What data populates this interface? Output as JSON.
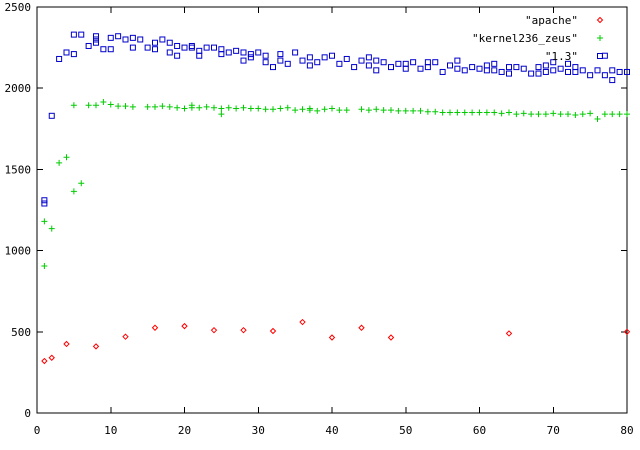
{
  "chart_data": {
    "type": "scatter",
    "title": "",
    "xlabel": "",
    "ylabel": "",
    "xlim": [
      0,
      80
    ],
    "ylim": [
      0,
      2500
    ],
    "xticks": [
      0,
      10,
      20,
      30,
      40,
      50,
      60,
      70,
      80
    ],
    "yticks": [
      0,
      500,
      1000,
      1500,
      2000,
      2500
    ],
    "xtick_labels": [
      "0",
      "10",
      "20",
      "30",
      "40",
      "50",
      "60",
      "70",
      "80"
    ],
    "ytick_labels": [
      "0",
      "500",
      "1000",
      "1500",
      "2000",
      "2500"
    ],
    "grid": false,
    "legend_position": "top-right",
    "series": [
      {
        "name": "\"apache\"",
        "marker": "diamond",
        "color": "#ff0000",
        "points": [
          [
            1,
            320
          ],
          [
            2,
            340
          ],
          [
            4,
            425
          ],
          [
            8,
            410
          ],
          [
            12,
            470
          ],
          [
            16,
            525
          ],
          [
            20,
            535
          ],
          [
            24,
            510
          ],
          [
            28,
            510
          ],
          [
            32,
            505
          ],
          [
            36,
            560
          ],
          [
            40,
            465
          ],
          [
            44,
            525
          ],
          [
            48,
            465
          ],
          [
            64,
            490
          ],
          [
            80,
            500
          ]
        ]
      },
      {
        "name": "\"kernel236_zeus\"",
        "marker": "plus",
        "color": "#00cc00",
        "points": [
          [
            1,
            905
          ],
          [
            1,
            1180
          ],
          [
            2,
            1135
          ],
          [
            3,
            1540
          ],
          [
            4,
            1575
          ],
          [
            5,
            1365
          ],
          [
            5,
            1895
          ],
          [
            6,
            1415
          ],
          [
            7,
            1895
          ],
          [
            8,
            1895
          ],
          [
            9,
            1915
          ],
          [
            10,
            1900
          ],
          [
            11,
            1890
          ],
          [
            12,
            1890
          ],
          [
            13,
            1885
          ],
          [
            15,
            1885
          ],
          [
            16,
            1885
          ],
          [
            17,
            1890
          ],
          [
            18,
            1885
          ],
          [
            19,
            1880
          ],
          [
            20,
            1875
          ],
          [
            21,
            1880
          ],
          [
            21,
            1895
          ],
          [
            22,
            1880
          ],
          [
            23,
            1885
          ],
          [
            24,
            1880
          ],
          [
            25,
            1840
          ],
          [
            25,
            1875
          ],
          [
            26,
            1880
          ],
          [
            27,
            1875
          ],
          [
            28,
            1880
          ],
          [
            29,
            1875
          ],
          [
            30,
            1875
          ],
          [
            31,
            1870
          ],
          [
            32,
            1870
          ],
          [
            33,
            1875
          ],
          [
            34,
            1880
          ],
          [
            35,
            1865
          ],
          [
            36,
            1870
          ],
          [
            37,
            1865
          ],
          [
            37,
            1875
          ],
          [
            38,
            1860
          ],
          [
            39,
            1870
          ],
          [
            40,
            1875
          ],
          [
            41,
            1865
          ],
          [
            42,
            1865
          ],
          [
            44,
            1870
          ],
          [
            45,
            1865
          ],
          [
            46,
            1870
          ],
          [
            47,
            1865
          ],
          [
            48,
            1865
          ],
          [
            49,
            1860
          ],
          [
            50,
            1860
          ],
          [
            51,
            1860
          ],
          [
            52,
            1860
          ],
          [
            53,
            1855
          ],
          [
            54,
            1855
          ],
          [
            55,
            1850
          ],
          [
            56,
            1850
          ],
          [
            57,
            1850
          ],
          [
            58,
            1850
          ],
          [
            59,
            1850
          ],
          [
            60,
            1850
          ],
          [
            61,
            1850
          ],
          [
            62,
            1850
          ],
          [
            63,
            1845
          ],
          [
            64,
            1850
          ],
          [
            65,
            1840
          ],
          [
            66,
            1845
          ],
          [
            67,
            1840
          ],
          [
            68,
            1840
          ],
          [
            69,
            1840
          ],
          [
            70,
            1845
          ],
          [
            71,
            1840
          ],
          [
            72,
            1840
          ],
          [
            73,
            1835
          ],
          [
            74,
            1840
          ],
          [
            75,
            1845
          ],
          [
            76,
            1810
          ],
          [
            77,
            1840
          ],
          [
            78,
            1840
          ],
          [
            79,
            1840
          ],
          [
            80,
            1840
          ]
        ]
      },
      {
        "name": "\"1.3\"",
        "marker": "square",
        "color": "#0000cc",
        "points": [
          [
            1,
            1290
          ],
          [
            1,
            1310
          ],
          [
            2,
            1830
          ],
          [
            3,
            2180
          ],
          [
            4,
            2220
          ],
          [
            5,
            2210
          ],
          [
            5,
            2330
          ],
          [
            6,
            2330
          ],
          [
            7,
            2260
          ],
          [
            8,
            2280
          ],
          [
            8,
            2300
          ],
          [
            8,
            2320
          ],
          [
            9,
            2240
          ],
          [
            10,
            2240
          ],
          [
            10,
            2310
          ],
          [
            11,
            2320
          ],
          [
            12,
            2300
          ],
          [
            13,
            2250
          ],
          [
            13,
            2310
          ],
          [
            14,
            2300
          ],
          [
            15,
            2250
          ],
          [
            16,
            2240
          ],
          [
            16,
            2280
          ],
          [
            17,
            2300
          ],
          [
            18,
            2220
          ],
          [
            18,
            2280
          ],
          [
            19,
            2200
          ],
          [
            19,
            2260
          ],
          [
            20,
            2250
          ],
          [
            21,
            2250
          ],
          [
            21,
            2260
          ],
          [
            22,
            2230
          ],
          [
            22,
            2200
          ],
          [
            23,
            2250
          ],
          [
            24,
            2250
          ],
          [
            25,
            2210
          ],
          [
            25,
            2240
          ],
          [
            26,
            2220
          ],
          [
            27,
            2230
          ],
          [
            28,
            2170
          ],
          [
            28,
            2220
          ],
          [
            29,
            2190
          ],
          [
            29,
            2210
          ],
          [
            30,
            2220
          ],
          [
            31,
            2200
          ],
          [
            31,
            2160
          ],
          [
            32,
            2130
          ],
          [
            33,
            2210
          ],
          [
            33,
            2170
          ],
          [
            34,
            2150
          ],
          [
            35,
            2220
          ],
          [
            36,
            2170
          ],
          [
            37,
            2190
          ],
          [
            37,
            2140
          ],
          [
            38,
            2160
          ],
          [
            39,
            2190
          ],
          [
            40,
            2200
          ],
          [
            41,
            2150
          ],
          [
            42,
            2180
          ],
          [
            43,
            2130
          ],
          [
            44,
            2170
          ],
          [
            45,
            2140
          ],
          [
            45,
            2190
          ],
          [
            46,
            2170
          ],
          [
            46,
            2110
          ],
          [
            47,
            2160
          ],
          [
            48,
            2130
          ],
          [
            49,
            2150
          ],
          [
            50,
            2120
          ],
          [
            50,
            2150
          ],
          [
            51,
            2160
          ],
          [
            52,
            2120
          ],
          [
            53,
            2160
          ],
          [
            53,
            2130
          ],
          [
            54,
            2160
          ],
          [
            55,
            2100
          ],
          [
            56,
            2140
          ],
          [
            57,
            2170
          ],
          [
            57,
            2120
          ],
          [
            58,
            2110
          ],
          [
            59,
            2130
          ],
          [
            60,
            2120
          ],
          [
            61,
            2110
          ],
          [
            61,
            2140
          ],
          [
            62,
            2150
          ],
          [
            62,
            2110
          ],
          [
            63,
            2100
          ],
          [
            64,
            2130
          ],
          [
            64,
            2090
          ],
          [
            65,
            2130
          ],
          [
            66,
            2120
          ],
          [
            67,
            2090
          ],
          [
            68,
            2130
          ],
          [
            68,
            2090
          ],
          [
            69,
            2100
          ],
          [
            69,
            2140
          ],
          [
            70,
            2160
          ],
          [
            70,
            2110
          ],
          [
            71,
            2120
          ],
          [
            72,
            2100
          ],
          [
            72,
            2150
          ],
          [
            73,
            2130
          ],
          [
            73,
            2100
          ],
          [
            74,
            2110
          ],
          [
            75,
            2080
          ],
          [
            76,
            2110
          ],
          [
            77,
            2200
          ],
          [
            77,
            2080
          ],
          [
            78,
            2110
          ],
          [
            78,
            2050
          ],
          [
            79,
            2100
          ],
          [
            80,
            2100
          ]
        ]
      }
    ]
  }
}
